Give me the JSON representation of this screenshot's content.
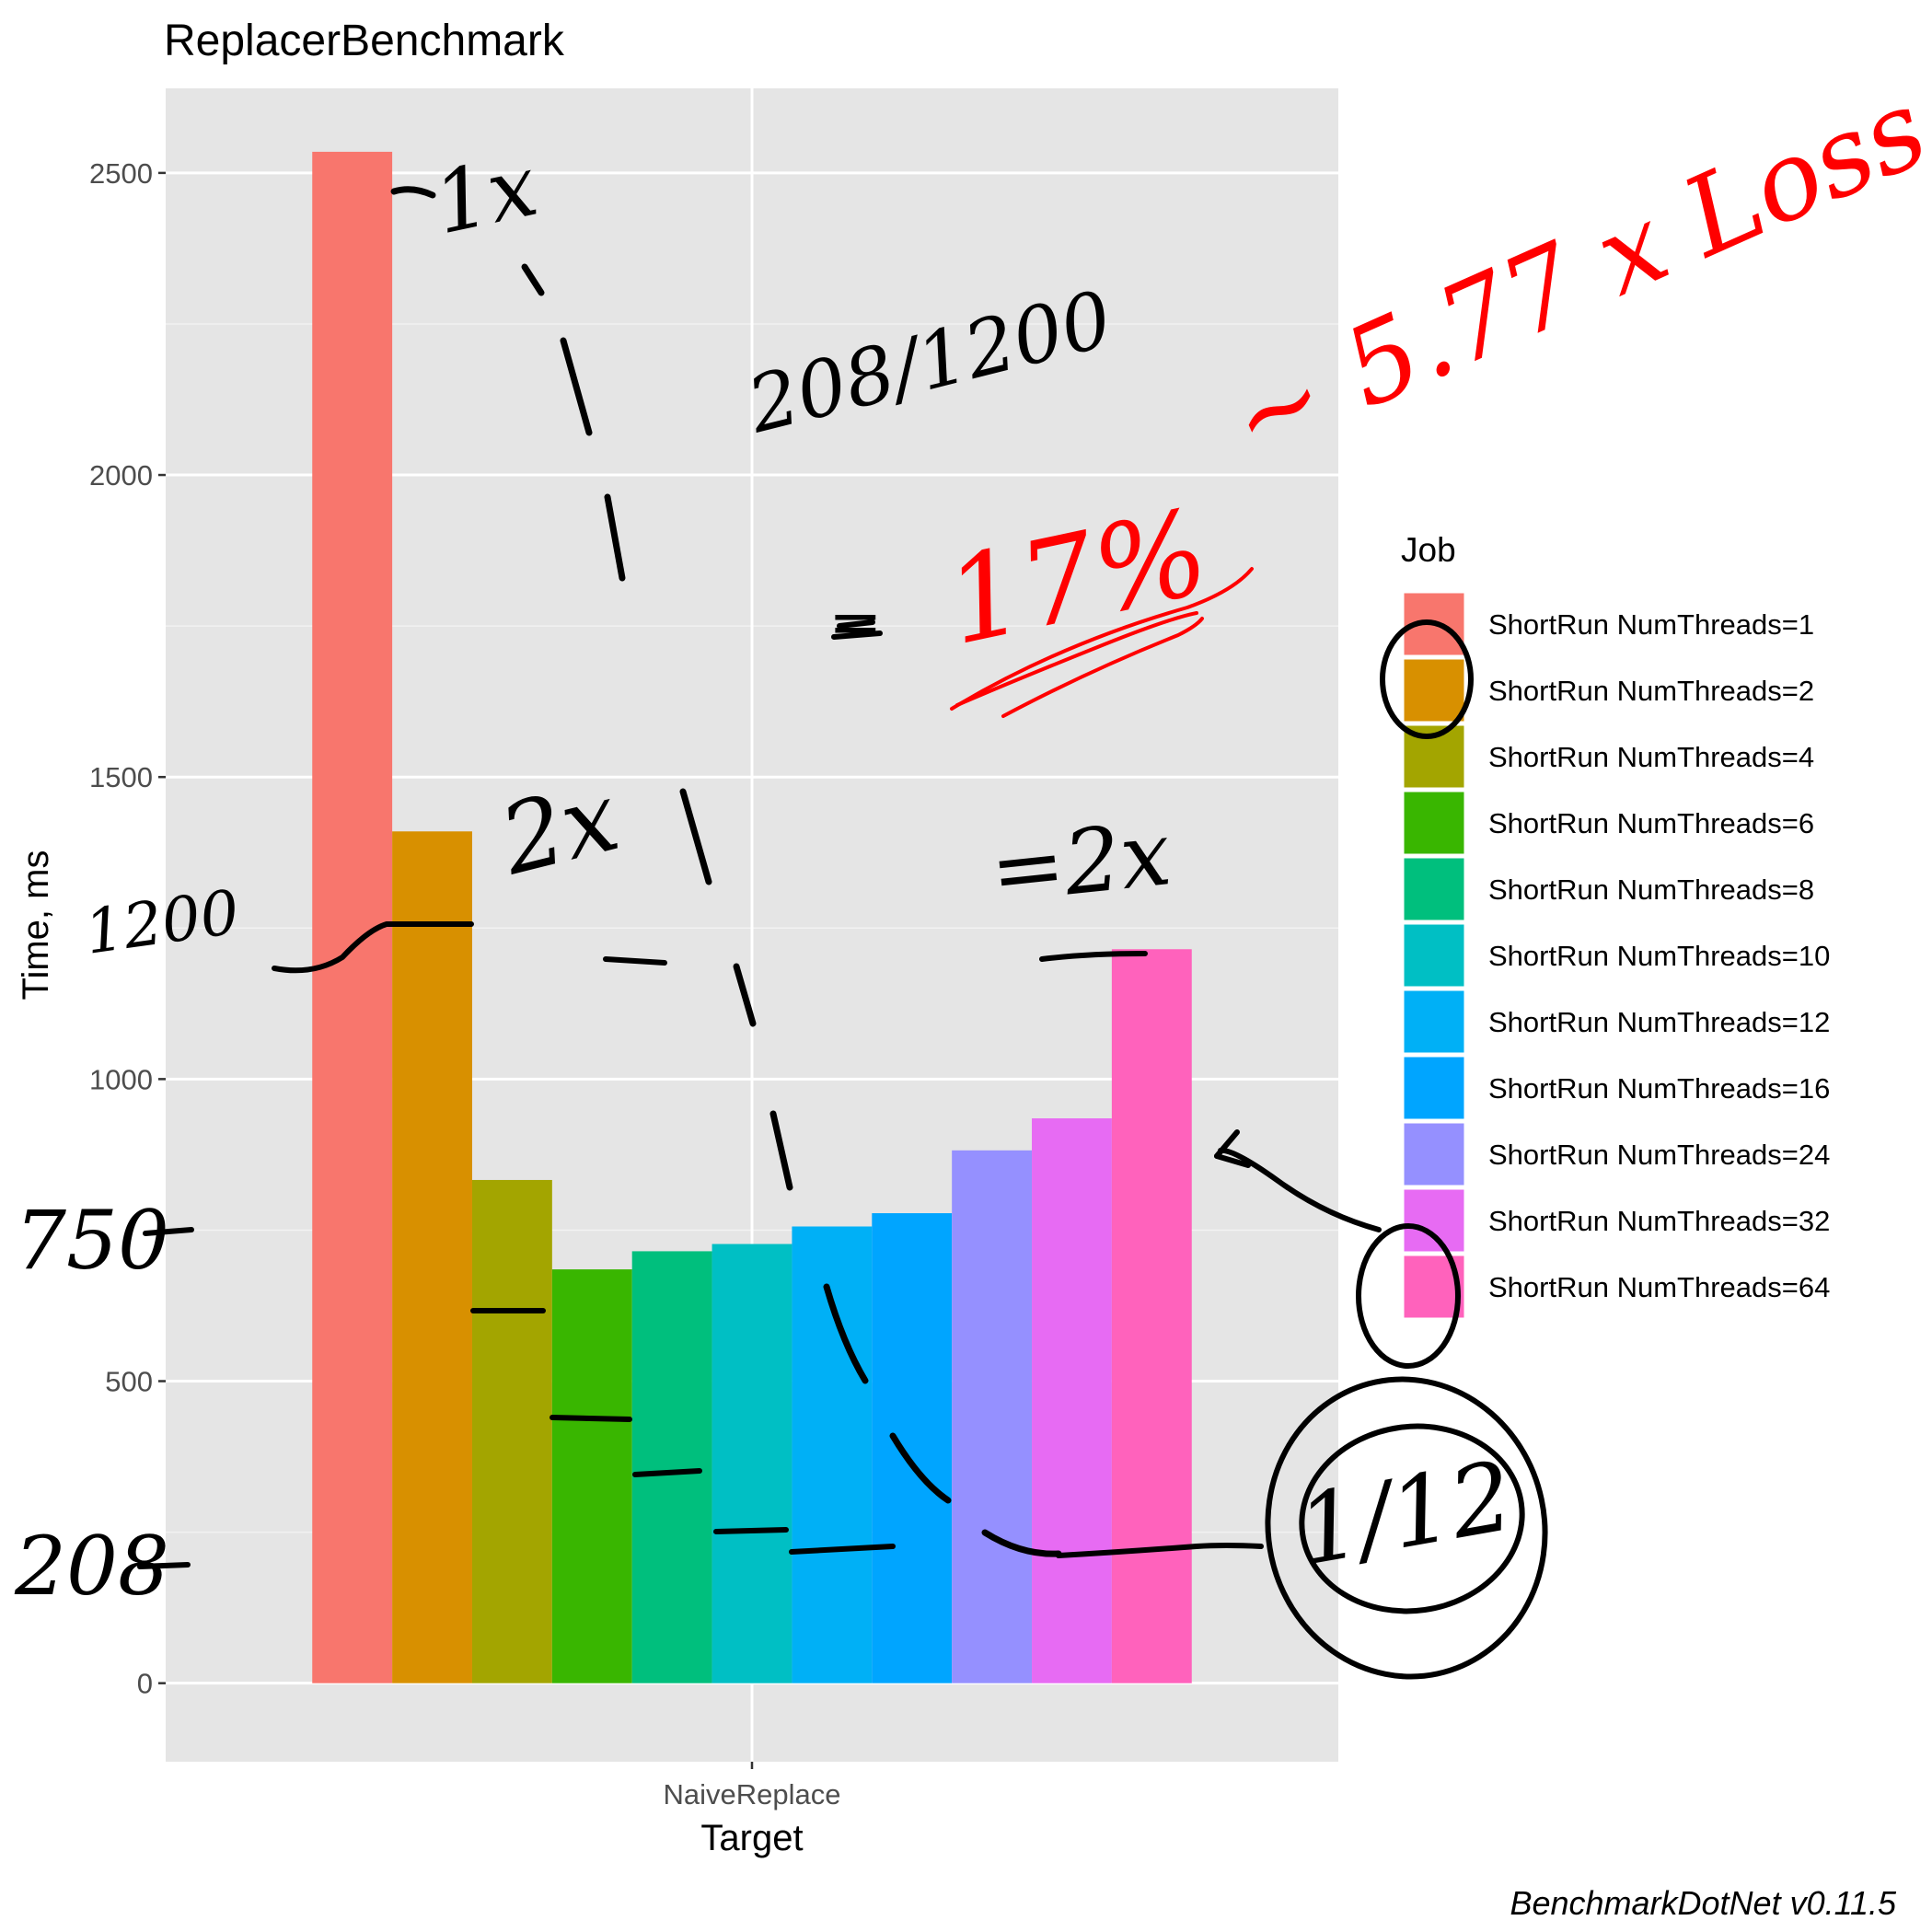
{
  "chart_data": {
    "type": "bar",
    "title": "ReplacerBenchmark",
    "xlabel": "Target",
    "ylabel": "Time, ms",
    "categories": [
      "NaiveReplace"
    ],
    "ylim": [
      -130,
      2640
    ],
    "yticks": [
      0,
      500,
      1000,
      1500,
      2000,
      2500
    ],
    "grid": true,
    "legend_title": "Job",
    "legend_position": "right",
    "series": [
      {
        "name": "ShortRun NumThreads=1",
        "values": [
          2535
        ],
        "color": "#F8766D"
      },
      {
        "name": "ShortRun NumThreads=2",
        "values": [
          1410
        ],
        "color": "#D89000"
      },
      {
        "name": "ShortRun NumThreads=4",
        "values": [
          833
        ],
        "color": "#A3A500"
      },
      {
        "name": "ShortRun NumThreads=6",
        "values": [
          685
        ],
        "color": "#39B600"
      },
      {
        "name": "ShortRun NumThreads=8",
        "values": [
          715
        ],
        "color": "#00BF7D"
      },
      {
        "name": "ShortRun NumThreads=10",
        "values": [
          727
        ],
        "color": "#00BFC4"
      },
      {
        "name": "ShortRun NumThreads=12",
        "values": [
          756
        ],
        "color": "#00B0F6"
      },
      {
        "name": "ShortRun NumThreads=16",
        "values": [
          778
        ],
        "color": "#00A5FF"
      },
      {
        "name": "ShortRun NumThreads=24",
        "values": [
          882
        ],
        "color": "#9590FF"
      },
      {
        "name": "ShortRun NumThreads=32",
        "values": [
          935
        ],
        "color": "#E76BF3"
      },
      {
        "name": "ShortRun NumThreads=64",
        "values": [
          1215
        ],
        "color": "#FF62BC"
      }
    ],
    "caption": "BenchmarkDotNet v0.11.5"
  },
  "annotations": {
    "one_x": "1x",
    "ratio": "208/1200",
    "equals_sign": "=",
    "percent": "17%",
    "loss": "~ 5.77 x Loss",
    "two_x_left": "2x",
    "two_x_right": "=2x",
    "val_1200": "1200",
    "val_750": "750",
    "val_208": "208",
    "one_twelfth": "1/12"
  }
}
